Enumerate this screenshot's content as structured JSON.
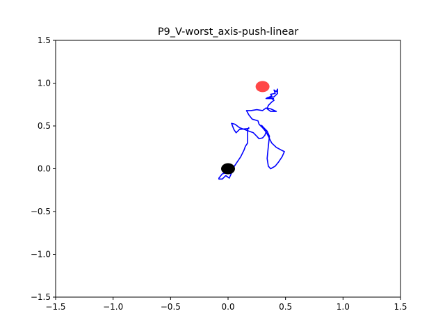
{
  "chart_data": {
    "type": "scatter",
    "title": "P9_V-worst_axis-push-linear",
    "xlabel": "",
    "ylabel": "",
    "xlim": [
      -1.5,
      1.5
    ],
    "ylim": [
      -1.5,
      1.5
    ],
    "x_ticks": [
      "−1.5",
      "−1.0",
      "−0.5",
      "0.0",
      "0.5",
      "1.0",
      "1.5"
    ],
    "y_ticks": [
      "−1.5",
      "−1.0",
      "−0.5",
      "0.0",
      "0.5",
      "1.0",
      "1.5"
    ],
    "x_tick_values": [
      -1.5,
      -1.0,
      -0.5,
      0.0,
      0.5,
      1.0,
      1.5
    ],
    "y_tick_values": [
      -1.5,
      -1.0,
      -0.5,
      0.0,
      0.5,
      1.0,
      1.5
    ],
    "grid": false,
    "trajectory": {
      "color": "#0000ff",
      "points": [
        [
          -0.03,
          0.0
        ],
        [
          0.0,
          0.01
        ],
        [
          0.02,
          0.0
        ],
        [
          0.03,
          -0.02
        ],
        [
          0.01,
          -0.05
        ],
        [
          -0.02,
          -0.05
        ],
        [
          -0.05,
          -0.06
        ],
        [
          -0.08,
          -0.11
        ],
        [
          -0.08,
          -0.12
        ],
        [
          -0.05,
          -0.12
        ],
        [
          -0.02,
          -0.08
        ],
        [
          0.01,
          -0.11
        ],
        [
          0.03,
          -0.05
        ],
        [
          0.05,
          0.02
        ],
        [
          0.08,
          0.08
        ],
        [
          0.11,
          0.14
        ],
        [
          0.14,
          0.22
        ],
        [
          0.15,
          0.26
        ],
        [
          0.17,
          0.3
        ],
        [
          0.17,
          0.35
        ],
        [
          0.17,
          0.4
        ],
        [
          0.17,
          0.44
        ],
        [
          0.17,
          0.46
        ],
        [
          0.18,
          0.48
        ],
        [
          0.18,
          0.47
        ],
        [
          0.1,
          0.46
        ],
        [
          0.07,
          0.42
        ],
        [
          0.05,
          0.46
        ],
        [
          0.03,
          0.53
        ],
        [
          0.06,
          0.52
        ],
        [
          0.1,
          0.48
        ],
        [
          0.14,
          0.46
        ],
        [
          0.18,
          0.44
        ],
        [
          0.22,
          0.42
        ],
        [
          0.25,
          0.38
        ],
        [
          0.27,
          0.35
        ],
        [
          0.3,
          0.36
        ],
        [
          0.32,
          0.39
        ],
        [
          0.33,
          0.43
        ],
        [
          0.3,
          0.48
        ],
        [
          0.27,
          0.52
        ],
        [
          0.26,
          0.56
        ],
        [
          0.21,
          0.58
        ],
        [
          0.18,
          0.63
        ],
        [
          0.16,
          0.68
        ],
        [
          0.2,
          0.68
        ],
        [
          0.25,
          0.69
        ],
        [
          0.3,
          0.68
        ],
        [
          0.33,
          0.71
        ],
        [
          0.37,
          0.7
        ],
        [
          0.42,
          0.67
        ],
        [
          0.37,
          0.67
        ],
        [
          0.34,
          0.7
        ],
        [
          0.35,
          0.74
        ],
        [
          0.38,
          0.78
        ],
        [
          0.4,
          0.8
        ],
        [
          0.38,
          0.82
        ],
        [
          0.34,
          0.83
        ],
        [
          0.4,
          0.84
        ],
        [
          0.43,
          0.88
        ],
        [
          0.43,
          0.93
        ],
        [
          0.42,
          0.9
        ],
        [
          0.4,
          0.92
        ],
        [
          0.41,
          0.88
        ],
        [
          0.37,
          0.87
        ],
        [
          0.38,
          0.85
        ],
        [
          0.33,
          0.82
        ],
        [
          0.4,
          0.82
        ]
      ],
      "points2": [
        [
          0.29,
          0.51
        ],
        [
          0.32,
          0.46
        ],
        [
          0.35,
          0.38
        ],
        [
          0.38,
          0.3
        ],
        [
          0.42,
          0.25
        ],
        [
          0.46,
          0.22
        ],
        [
          0.49,
          0.2
        ],
        [
          0.47,
          0.14
        ],
        [
          0.44,
          0.08
        ],
        [
          0.41,
          0.03
        ],
        [
          0.37,
          0.0
        ],
        [
          0.35,
          0.03
        ],
        [
          0.34,
          0.12
        ],
        [
          0.35,
          0.26
        ],
        [
          0.36,
          0.38
        ],
        [
          0.34,
          0.44
        ],
        [
          0.31,
          0.48
        ],
        [
          0.29,
          0.51
        ]
      ]
    },
    "markers": [
      {
        "name": "start",
        "x": 0.0,
        "y": 0.0,
        "color": "#000000"
      },
      {
        "name": "goal",
        "x": 0.3,
        "y": 0.96,
        "color": "#ff0000",
        "alpha": 0.72
      }
    ]
  }
}
